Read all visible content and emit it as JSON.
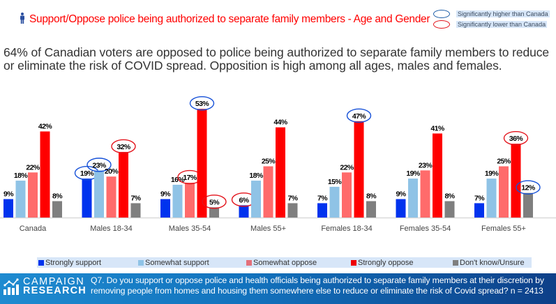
{
  "header": {
    "title": "Support/Oppose police being authorized to separate family members - Age and Gender",
    "title_icon": "person-icon",
    "significance_legend": [
      {
        "label": "Significantly higher than Canada",
        "color": "#1f5fa8"
      },
      {
        "label": "Significantly lower than Canada",
        "color": "#e3131b"
      }
    ]
  },
  "summary": "64% of Canadian voters are opposed to police being authorized to separate family members to reduce or eliminate the risk of COVID spread. Opposition is high among all ages, males and females.",
  "chart_data": {
    "type": "bar",
    "title": "Support/Oppose police being authorized to separate family members - Age and Gender",
    "xlabel": "",
    "ylabel": "",
    "ylim": [
      0,
      55
    ],
    "grid": false,
    "legend_position": "bottom",
    "categories": [
      "Canada",
      "Males 18-34",
      "Males 35-54",
      "Males 55+",
      "Females 18-34",
      "Females 35-54",
      "Females 55+"
    ],
    "series": [
      {
        "name": "Strongly support",
        "color": "#0033ee",
        "values": [
          9,
          19,
          9,
          6,
          7,
          9,
          7
        ],
        "labels": [
          "9%",
          "19%",
          "9%",
          "6%",
          "7%",
          "9%",
          "7%"
        ],
        "significance": [
          "",
          "higher",
          "",
          "lower",
          "",
          "",
          ""
        ]
      },
      {
        "name": "Somewhat support",
        "color": "#8fc3e6",
        "values": [
          18,
          23,
          16,
          18,
          15,
          19,
          19
        ],
        "labels": [
          "18%",
          "23%",
          "16%",
          "18%",
          "15%",
          "19%",
          "19%"
        ],
        "significance": [
          "",
          "higher",
          "",
          "",
          "",
          "",
          ""
        ]
      },
      {
        "name": "Somewhat oppose",
        "color": "#ff6b6b",
        "values": [
          22,
          20,
          17,
          25,
          22,
          23,
          25
        ],
        "labels": [
          "22%",
          "20%",
          "17%",
          "25%",
          "22%",
          "23%",
          "25%"
        ],
        "significance": [
          "",
          "",
          "lower",
          "",
          "",
          "",
          ""
        ]
      },
      {
        "name": "Strongly oppose",
        "color": "#ff0000",
        "values": [
          42,
          32,
          53,
          44,
          47,
          41,
          36
        ],
        "labels": [
          "42%",
          "32%",
          "53%",
          "44%",
          "47%",
          "41%",
          "36%"
        ],
        "significance": [
          "",
          "lower",
          "higher",
          "",
          "higher",
          "",
          "lower"
        ]
      },
      {
        "name": "Don't know/Unsure",
        "color": "#7f7f7f",
        "values": [
          8,
          7,
          5,
          7,
          8,
          8,
          12
        ],
        "labels": [
          "8%",
          "7%",
          "5%",
          "7%",
          "8%",
          "8%",
          "12%"
        ],
        "significance": [
          "",
          "",
          "lower",
          "",
          "",
          "",
          "higher"
        ]
      }
    ]
  },
  "footer": {
    "logo_line1": "CAMPAIGN",
    "logo_line2": "RESEARCH",
    "question": "Q7. Do you support or oppose police and health officials being authorized to separate family members at their discretion by removing people from homes and housing them somewhere else to reduce or eliminate the risk of Covid spread? n = 2413"
  }
}
